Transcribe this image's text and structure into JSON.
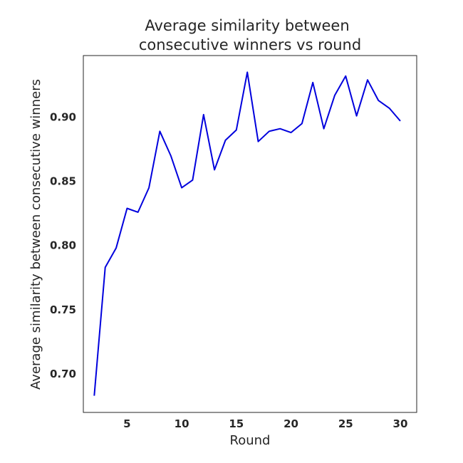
{
  "chart_data": {
    "type": "line",
    "title_lines": [
      "Average similarity between",
      "consecutive winners vs round"
    ],
    "xlabel": "Round",
    "ylabel": "Average similarity between consecutive winners",
    "xlim": [
      1.0,
      31.5
    ],
    "ylim": [
      0.67,
      0.948
    ],
    "xticks": [
      5,
      10,
      15,
      20,
      25,
      30
    ],
    "yticks": [
      0.7,
      0.75,
      0.8,
      0.85,
      0.9
    ],
    "grid": false,
    "series": [
      {
        "color": "#0000dd",
        "x": [
          2,
          3,
          4,
          5,
          6,
          7,
          8,
          9,
          10,
          11,
          12,
          13,
          14,
          15,
          16,
          17,
          18,
          19,
          20,
          21,
          22,
          23,
          24,
          25,
          26,
          27,
          28,
          29,
          30
        ],
        "y": [
          0.683,
          0.783,
          0.798,
          0.829,
          0.826,
          0.845,
          0.889,
          0.87,
          0.845,
          0.851,
          0.902,
          0.859,
          0.882,
          0.89,
          0.935,
          0.881,
          0.889,
          0.891,
          0.888,
          0.895,
          0.927,
          0.891,
          0.917,
          0.932,
          0.901,
          0.929,
          0.913,
          0.907,
          0.897
        ]
      }
    ]
  }
}
